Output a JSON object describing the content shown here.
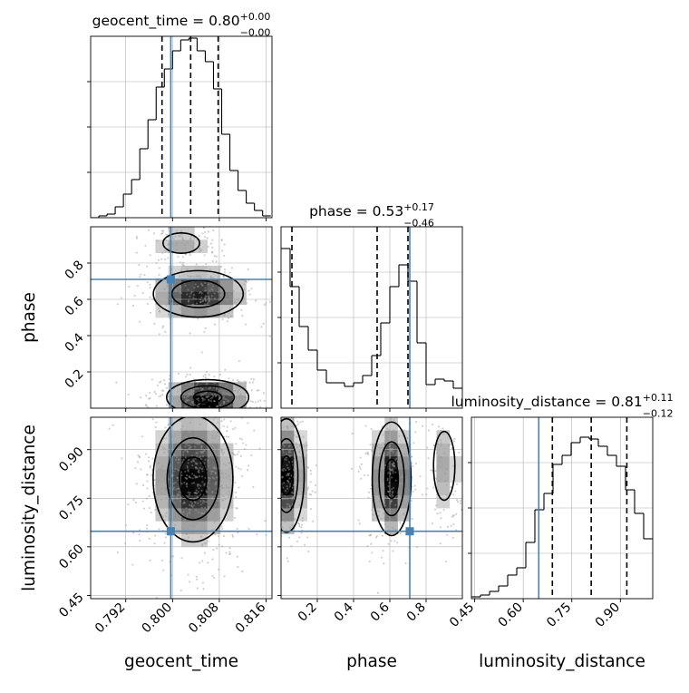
{
  "colors": {
    "truth": "#4682b4",
    "ink": "#000000",
    "grid": "#b0b0b0",
    "scatter": "#9a9a9a"
  },
  "chart_data": [
    {
      "panel": "geocent_time-1d",
      "type": "histogram",
      "title_main": "geocent_time = 0.80",
      "title_sup": "+0.00",
      "title_sub": "−0.00",
      "xlim": [
        0.786,
        0.817
      ],
      "bins_x": [
        0.786,
        0.7874,
        0.7888,
        0.7902,
        0.7916,
        0.793,
        0.7944,
        0.7958,
        0.7972,
        0.7986,
        0.8,
        0.8014,
        0.8028,
        0.8042,
        0.8056,
        0.807,
        0.8084,
        0.8098,
        0.8112,
        0.8126,
        0.814,
        0.8154,
        0.8168
      ],
      "counts": [
        0.0,
        0.01,
        0.02,
        0.06,
        0.13,
        0.21,
        0.38,
        0.54,
        0.72,
        0.82,
        0.92,
        0.98,
        0.99,
        0.92,
        0.86,
        0.71,
        0.46,
        0.26,
        0.15,
        0.08,
        0.04,
        0.01
      ],
      "quantile_lines": [
        0.7982,
        0.8031,
        0.8078
      ],
      "truth": 0.7997
    },
    {
      "panel": "phase-1d",
      "type": "histogram",
      "title_main": "phase = 0.53",
      "title_sup": "+0.17",
      "title_sub": "−0.46",
      "xlim": [
        0.0,
        1.0
      ],
      "bins_x": [
        0.0,
        0.05,
        0.1,
        0.15,
        0.2,
        0.25,
        0.3,
        0.35,
        0.4,
        0.45,
        0.5,
        0.55,
        0.6,
        0.65,
        0.7,
        0.75,
        0.8,
        0.85,
        0.9,
        0.95,
        1.0
      ],
      "counts": [
        0.88,
        0.67,
        0.45,
        0.32,
        0.21,
        0.14,
        0.14,
        0.12,
        0.14,
        0.18,
        0.29,
        0.47,
        0.67,
        0.79,
        0.7,
        0.36,
        0.13,
        0.16,
        0.15,
        0.11
      ],
      "quantile_lines": [
        0.06,
        0.53,
        0.7
      ],
      "truth": 0.71
    },
    {
      "panel": "luminosity_distance-1d",
      "type": "histogram",
      "title_main": "luminosity_distance = 0.81",
      "title_sup": "+0.11",
      "title_sub": "−0.12",
      "xlim": [
        0.44,
        1.0
      ],
      "bins_x": [
        0.44,
        0.468,
        0.496,
        0.524,
        0.552,
        0.58,
        0.608,
        0.636,
        0.664,
        0.692,
        0.72,
        0.748,
        0.776,
        0.804,
        0.832,
        0.86,
        0.888,
        0.916,
        0.944,
        0.972,
        1.0
      ],
      "counts": [
        0.01,
        0.02,
        0.04,
        0.07,
        0.13,
        0.17,
        0.31,
        0.49,
        0.58,
        0.74,
        0.79,
        0.86,
        0.89,
        0.88,
        0.84,
        0.79,
        0.73,
        0.6,
        0.47,
        0.33
      ],
      "quantile_lines": [
        0.69,
        0.81,
        0.92
      ],
      "truth": 0.648
    },
    {
      "panel": "geocent_time-phase",
      "type": "2d-density",
      "xlim": [
        0.786,
        0.817
      ],
      "ylim": [
        0.0,
        1.0
      ],
      "modes": [
        {
          "x": 0.8044,
          "y": 0.63,
          "sx": 0.0042,
          "sy": 0.07,
          "w": 1.0
        },
        {
          "x": 0.806,
          "y": 0.06,
          "sx": 0.0036,
          "sy": 0.05,
          "w": 1.25
        },
        {
          "x": 0.8015,
          "y": 0.91,
          "sx": 0.0028,
          "sy": 0.05,
          "w": 0.35
        }
      ],
      "truth": {
        "x": 0.7997,
        "y": 0.71
      }
    },
    {
      "panel": "geocent_time-luminosity_distance",
      "type": "2d-density",
      "xlim": [
        0.786,
        0.817
      ],
      "ylim": [
        0.44,
        1.0
      ],
      "modes": [
        {
          "x": 0.8035,
          "y": 0.81,
          "sx": 0.0035,
          "sy": 0.1,
          "w": 1.0
        }
      ],
      "truth": {
        "x": 0.7997,
        "y": 0.648
      }
    },
    {
      "panel": "phase-luminosity_distance",
      "type": "2d-density",
      "xlim": [
        0.0,
        1.0
      ],
      "ylim": [
        0.44,
        1.0
      ],
      "modes": [
        {
          "x": 0.03,
          "y": 0.82,
          "sx": 0.05,
          "sy": 0.09,
          "w": 1.0
        },
        {
          "x": 0.61,
          "y": 0.81,
          "sx": 0.055,
          "sy": 0.09,
          "w": 1.0
        },
        {
          "x": 0.9,
          "y": 0.85,
          "sx": 0.05,
          "sy": 0.09,
          "w": 0.3
        }
      ],
      "truth": {
        "x": 0.71,
        "y": 0.648
      }
    }
  ],
  "axes": {
    "geocent_time": {
      "label": "geocent_time",
      "ticks": [
        0.792,
        0.8,
        0.808,
        0.816
      ],
      "tick_labels": [
        "0.792",
        "0.800",
        "0.808",
        "0.816"
      ]
    },
    "phase": {
      "label": "phase",
      "ticks": [
        0.2,
        0.4,
        0.6,
        0.8
      ],
      "tick_labels": [
        "0.2",
        "0.4",
        "0.6",
        "0.8"
      ]
    },
    "luminosity_distance": {
      "label": "luminosity_distance",
      "ticks": [
        0.45,
        0.6,
        0.75,
        0.9
      ],
      "tick_labels": [
        "0.45",
        "0.60",
        "0.75",
        "0.90"
      ]
    }
  },
  "hist_yticks": [
    0.25,
    0.5,
    0.75
  ]
}
